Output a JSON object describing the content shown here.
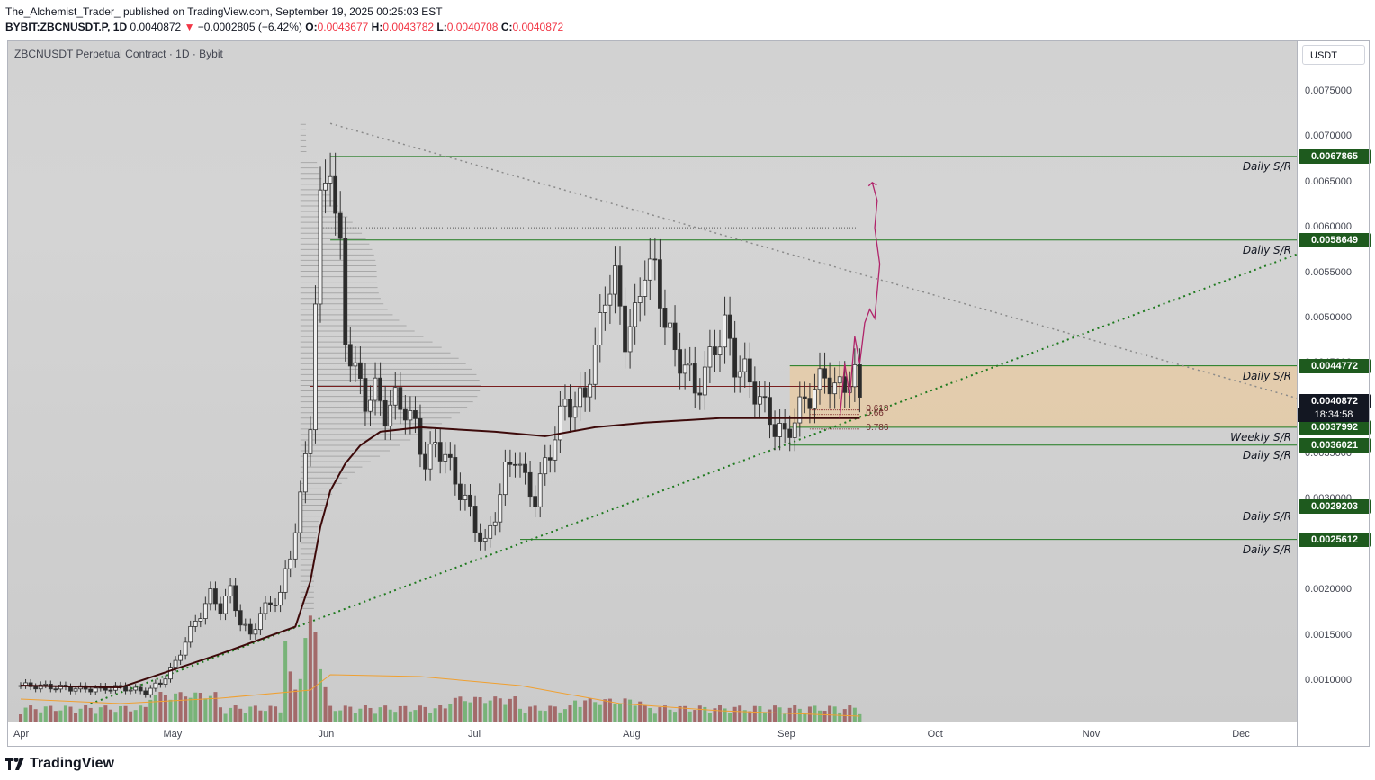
{
  "header": {
    "line1": "The_Alchemist_Trader_ published on TradingView.com, September 19, 2025 00:25:03 EST",
    "symbol": "BYBIT:ZBCNUSDT.P, 1D",
    "last": "0.0040872",
    "change": "−0.0002805 (−6.42%)",
    "change_arrow": "▼",
    "o_label": "O:",
    "o": "0.0043677",
    "h_label": "H:",
    "h": "0.0043782",
    "l_label": "L:",
    "l": "0.0040708",
    "c_label": "C:",
    "c": "0.0040872"
  },
  "chart_title": "ZBCNUSDT Perpetual Contract · 1D · Bybit",
  "currency_button": "USDT",
  "countdown": "18:34:58",
  "footer_brand": "TradingView",
  "colors": {
    "up": "#6b6b6b",
    "down": "#2b2b2b",
    "sr_line": "#1e7a1e",
    "tag_green": "#1e5a1e",
    "ma": "#3d0a0a",
    "trend_green": "#1f7a1f",
    "trend_gray": "#8a8a8a",
    "zone": "#e8c9a0",
    "projection": "#b0246a",
    "volume_up": "#6fb06f",
    "volume_down": "#9e5f5f",
    "volume_ma": "#f0a030"
  },
  "chart_data": {
    "type": "candlestick",
    "ylim": [
      0.00045,
      0.008
    ],
    "x_range_days": [
      0,
      260
    ],
    "y_ticks": [
      "0.0075000",
      "0.0070000",
      "0.0065000",
      "0.0060000",
      "0.0055000",
      "0.0050000",
      "0.0045000",
      "0.0040000",
      "0.0035000",
      "0.0030000",
      "0.0025000",
      "0.0020000",
      "0.0015000",
      "0.0010000"
    ],
    "y_tick_values": [
      0.0075,
      0.007,
      0.0065,
      0.006,
      0.0055,
      0.005,
      0.0045,
      0.004,
      0.0035,
      0.003,
      0.0025,
      0.002,
      0.0015,
      0.001
    ],
    "x_labels": [
      {
        "label": "Apr",
        "day": 0
      },
      {
        "label": "May",
        "day": 30
      },
      {
        "label": "Jun",
        "day": 61
      },
      {
        "label": "Jul",
        "day": 91
      },
      {
        "label": "Aug",
        "day": 122
      },
      {
        "label": "Sep",
        "day": 153
      },
      {
        "label": "Oct",
        "day": 183
      },
      {
        "label": "Nov",
        "day": 214
      },
      {
        "label": "Dec",
        "day": 244
      }
    ],
    "close_path": [
      [
        0,
        0.00095
      ],
      [
        5,
        0.00094
      ],
      [
        10,
        0.00092
      ],
      [
        15,
        0.00091
      ],
      [
        20,
        0.00093
      ],
      [
        25,
        0.00088
      ],
      [
        28,
        0.00098
      ],
      [
        31,
        0.0012
      ],
      [
        33,
        0.00145
      ],
      [
        36,
        0.00175
      ],
      [
        38,
        0.00195
      ],
      [
        40,
        0.0018
      ],
      [
        42,
        0.002
      ],
      [
        44,
        0.00165
      ],
      [
        46,
        0.0015
      ],
      [
        48,
        0.00175
      ],
      [
        50,
        0.00185
      ],
      [
        52,
        0.00195
      ],
      [
        54,
        0.0024
      ],
      [
        56,
        0.003
      ],
      [
        58,
        0.0039
      ],
      [
        59,
        0.0052
      ],
      [
        60,
        0.0062
      ],
      [
        61,
        0.0065
      ],
      [
        62,
        0.0068
      ],
      [
        63,
        0.0061
      ],
      [
        64,
        0.0057
      ],
      [
        65,
        0.0048
      ],
      [
        67,
        0.0044
      ],
      [
        69,
        0.0041
      ],
      [
        71,
        0.0042
      ],
      [
        73,
        0.00395
      ],
      [
        75,
        0.0041
      ],
      [
        77,
        0.004
      ],
      [
        79,
        0.0038
      ],
      [
        81,
        0.0034
      ],
      [
        83,
        0.0036
      ],
      [
        85,
        0.0035
      ],
      [
        87,
        0.0032
      ],
      [
        89,
        0.003
      ],
      [
        91,
        0.0027
      ],
      [
        93,
        0.0025
      ],
      [
        95,
        0.00285
      ],
      [
        97,
        0.0033
      ],
      [
        99,
        0.0035
      ],
      [
        101,
        0.0032
      ],
      [
        103,
        0.003
      ],
      [
        105,
        0.0034
      ],
      [
        107,
        0.0037
      ],
      [
        109,
        0.0041
      ],
      [
        111,
        0.004
      ],
      [
        113,
        0.0042
      ],
      [
        115,
        0.0046
      ],
      [
        117,
        0.0053
      ],
      [
        119,
        0.0054
      ],
      [
        121,
        0.0048
      ],
      [
        123,
        0.005
      ],
      [
        125,
        0.0056
      ],
      [
        127,
        0.0055
      ],
      [
        129,
        0.005
      ],
      [
        131,
        0.0046
      ],
      [
        133,
        0.0045
      ],
      [
        135,
        0.0042
      ],
      [
        137,
        0.0044
      ],
      [
        139,
        0.0047
      ],
      [
        141,
        0.0049
      ],
      [
        143,
        0.0045
      ],
      [
        145,
        0.0044
      ],
      [
        147,
        0.0042
      ],
      [
        149,
        0.004
      ],
      [
        151,
        0.0038
      ],
      [
        153,
        0.0037
      ],
      [
        155,
        0.0039
      ],
      [
        157,
        0.0041
      ],
      [
        159,
        0.0042
      ],
      [
        161,
        0.0044
      ],
      [
        163,
        0.0042
      ],
      [
        165,
        0.0043
      ],
      [
        167,
        0.00435
      ],
      [
        168,
        0.00409
      ]
    ],
    "moving_average": [
      [
        0,
        0.00095
      ],
      [
        20,
        0.00093
      ],
      [
        40,
        0.0013
      ],
      [
        50,
        0.0015
      ],
      [
        55,
        0.0016
      ],
      [
        58,
        0.0021
      ],
      [
        60,
        0.0027
      ],
      [
        62,
        0.0031
      ],
      [
        65,
        0.0034
      ],
      [
        68,
        0.0036
      ],
      [
        72,
        0.00375
      ],
      [
        80,
        0.0038
      ],
      [
        95,
        0.00375
      ],
      [
        105,
        0.0037
      ],
      [
        115,
        0.0038
      ],
      [
        125,
        0.00385
      ],
      [
        140,
        0.0039
      ],
      [
        150,
        0.0039
      ],
      [
        168,
        0.0039
      ]
    ],
    "horizontal_levels": [
      {
        "price": 0.0067865,
        "label": "0.0067865",
        "note": "Daily S/R"
      },
      {
        "price": 0.0058649,
        "label": "0.0058649",
        "note": "Daily S/R"
      },
      {
        "price": 0.0044772,
        "label": "0.0044772",
        "note": "Daily S/R"
      },
      {
        "price": 0.0037992,
        "label": "0.0037992",
        "note": "Weekly S/R"
      },
      {
        "price": 0.0036021,
        "label": "0.0036021",
        "note": "Daily S/R"
      },
      {
        "price": 0.0029203,
        "label": "0.0029203",
        "note": "Daily S/R"
      },
      {
        "price": 0.0025612,
        "label": "0.0025612",
        "note": "Daily S/R"
      }
    ],
    "fib_levels": [
      {
        "label": "0.618",
        "price": 0.00399
      },
      {
        "label": "0.66",
        "price": 0.00394
      },
      {
        "label": "0.786",
        "price": 0.00378
      }
    ],
    "zone": {
      "x0": 154,
      "x1": 260,
      "y_top": 0.0044772,
      "y_bottom": 0.0037992
    },
    "trendline_descending": [
      [
        62,
        0.00715
      ],
      [
        260,
        0.00405
      ]
    ],
    "trendline_ascending": [
      [
        14,
        0.00075
      ],
      [
        260,
        0.0058
      ]
    ],
    "poc_line": {
      "price": 0.00425,
      "x0": 58,
      "x1": 168
    },
    "dotted_top_line": {
      "price": 0.006,
      "x0": 60,
      "x1": 168
    },
    "projection_path": [
      [
        164,
        0.0039
      ],
      [
        165,
        0.0045
      ],
      [
        166,
        0.00415
      ],
      [
        167,
        0.0048
      ],
      [
        168,
        0.0045
      ],
      [
        169,
        0.00495
      ],
      [
        170,
        0.0051
      ],
      [
        171,
        0.005
      ],
      [
        172,
        0.0056
      ],
      [
        171,
        0.006
      ],
      [
        171.5,
        0.0063
      ],
      [
        170.5,
        0.0065
      ]
    ]
  }
}
